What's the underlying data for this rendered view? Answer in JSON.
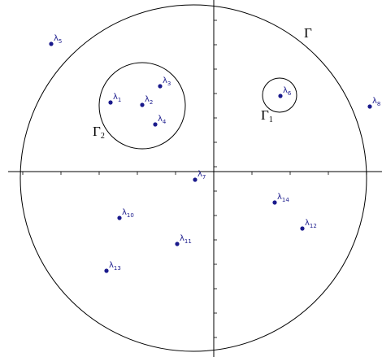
{
  "contours": [
    {
      "symbol": "Γ",
      "index": ""
    },
    {
      "symbol": "Γ",
      "index": "1"
    },
    {
      "symbol": "Γ",
      "index": "2"
    }
  ],
  "points": [
    {
      "symbol": "λ",
      "index": "1"
    },
    {
      "symbol": "λ",
      "index": "2"
    },
    {
      "symbol": "λ",
      "index": "3"
    },
    {
      "symbol": "λ",
      "index": "4"
    },
    {
      "symbol": "λ",
      "index": "5"
    },
    {
      "symbol": "λ",
      "index": "6"
    },
    {
      "symbol": "λ",
      "index": "7"
    },
    {
      "symbol": "λ",
      "index": "8"
    },
    {
      "symbol": "λ",
      "index": "10"
    },
    {
      "symbol": "λ",
      "index": "11"
    },
    {
      "symbol": "λ",
      "index": "12"
    },
    {
      "symbol": "λ",
      "index": "13"
    },
    {
      "symbol": "λ",
      "index": "14"
    }
  ]
}
